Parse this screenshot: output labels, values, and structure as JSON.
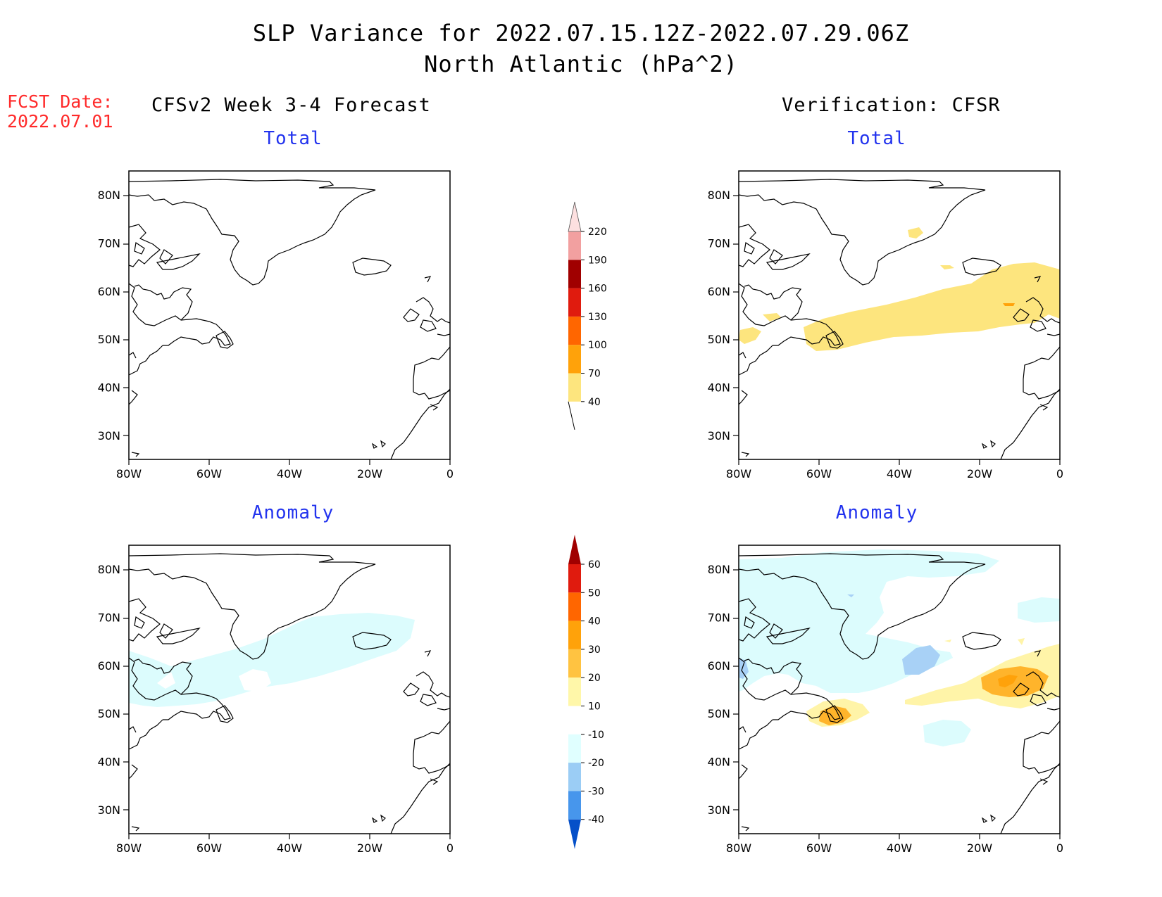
{
  "header": {
    "title_line1": "SLP Variance for 2022.07.15.12Z-2022.07.29.06Z",
    "title_line2": "North Atlantic (hPa^2)"
  },
  "fcst_date": {
    "label": "FCST Date:",
    "value": "2022.07.01"
  },
  "columns": {
    "left": "CFSv2 Week 3-4 Forecast",
    "right": "Verification: CFSR"
  },
  "panels": {
    "total_label": "Total",
    "anomaly_label": "Anomaly"
  },
  "axes": {
    "lon_ticks": [
      "80W",
      "60W",
      "40W",
      "20W",
      "0"
    ],
    "lat_ticks": [
      "80N",
      "70N",
      "60N",
      "50N",
      "40N",
      "30N"
    ],
    "lon_range": [
      -80,
      0
    ],
    "lat_range": [
      25,
      85
    ]
  },
  "colorbar_total": {
    "levels": [
      "40",
      "70",
      "100",
      "130",
      "160",
      "190",
      "220"
    ],
    "colors": [
      "#fde57e",
      "#ffa20a",
      "#ff6600",
      "#e01b0e",
      "#a00000",
      "#f2a0a0",
      "#fde0e0"
    ]
  },
  "colorbar_anomaly": {
    "levels": [
      "60",
      "50",
      "40",
      "30",
      "20",
      "10",
      "-10",
      "-20",
      "-30",
      "-40"
    ],
    "colors": [
      "#a00000",
      "#e01b0e",
      "#ff6600",
      "#ffa20a",
      "#ffc341",
      "#fff7a9",
      "#ffffff",
      "#e0ffff",
      "#9bcdf5",
      "#4796ec",
      "#1e6fe0",
      "#0550c9"
    ]
  },
  "colors": {
    "title_blue": "#2233ee",
    "fcst_red": "#ff2a2a",
    "light_cyan": "#dcfcfd",
    "light_blue": "#a8d1f6",
    "yellow": "#fde57e",
    "light_yellow": "#fff4a8",
    "orange": "#ffb42b"
  }
}
